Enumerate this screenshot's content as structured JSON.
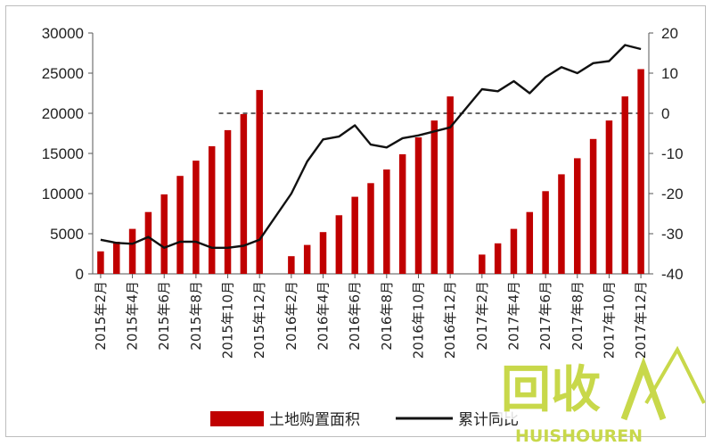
{
  "chart_data": {
    "type": "bar+line",
    "title": "",
    "categories": [
      "2015年2月",
      "2015年3月",
      "2015年4月",
      "2015年5月",
      "2015年6月",
      "2015年7月",
      "2015年8月",
      "2015年9月",
      "2015年10月",
      "2015年11月",
      "2015年12月",
      "2016年2月",
      "2016年3月",
      "2016年4月",
      "2016年5月",
      "2016年6月",
      "2016年7月",
      "2016年8月",
      "2016年9月",
      "2016年10月",
      "2016年11月",
      "2016年12月",
      "2017年2月",
      "2017年3月",
      "2017年4月",
      "2017年5月",
      "2017年6月",
      "2017年7月",
      "2017年8月",
      "2017年9月",
      "2017年10月",
      "2017年11月",
      "2017年12月"
    ],
    "xtick_labels": [
      "2015年2月",
      "2015年4月",
      "2015年6月",
      "2015年8月",
      "2015年10月",
      "2015年12月",
      "2016年2月",
      "2016年4月",
      "2016年6月",
      "2016年8月",
      "2016年10月",
      "2016年12月",
      "2017年2月",
      "2017年4月",
      "2017年6月",
      "2017年8月",
      "2017年10月",
      "2017年12月"
    ],
    "series": [
      {
        "name": "土地购置面积",
        "type": "bar",
        "axis": "left",
        "color": "#c00000",
        "values": [
          2800,
          4000,
          5600,
          7700,
          9900,
          12200,
          14100,
          15900,
          17900,
          19900,
          22900,
          2200,
          3600,
          5200,
          7300,
          9600,
          11300,
          13000,
          14900,
          17000,
          19100,
          22100,
          2400,
          3800,
          5600,
          7700,
          10300,
          12400,
          14400,
          16800,
          19100,
          22100,
          25500
        ]
      },
      {
        "name": "累计同比",
        "type": "line",
        "axis": "right",
        "color": "#111111",
        "values": [
          -31.5,
          -32.3,
          -32.5,
          -30.8,
          -33.5,
          -32.0,
          -32.0,
          -33.5,
          -33.5,
          -33.0,
          -31.5,
          -20.0,
          -12.0,
          -6.5,
          -5.8,
          -3.0,
          -7.8,
          -8.5,
          -6.2,
          -5.5,
          -4.5,
          -3.5,
          6.0,
          5.5,
          8.0,
          5.0,
          9.0,
          11.5,
          10.0,
          12.5,
          13.0,
          17.0,
          16.0
        ]
      }
    ],
    "y_left": {
      "range": [
        0,
        30000
      ],
      "ticks": [
        "0",
        "5000",
        "10000",
        "15000",
        "20000",
        "25000",
        "30000"
      ]
    },
    "y_right": {
      "range": [
        -40,
        20
      ],
      "ticks": [
        "-40",
        "-30",
        "-20",
        "-10",
        "0",
        "10",
        "20"
      ]
    },
    "reference_line": {
      "axis": "right",
      "value": 0,
      "style": "dashed"
    },
    "legend": {
      "position": "bottom",
      "items": [
        "土地购置面积",
        "累计同比"
      ]
    }
  },
  "watermark": {
    "text_top": "回收",
    "text_bottom": "HUISHOUREN",
    "color": "#c8d84a"
  }
}
